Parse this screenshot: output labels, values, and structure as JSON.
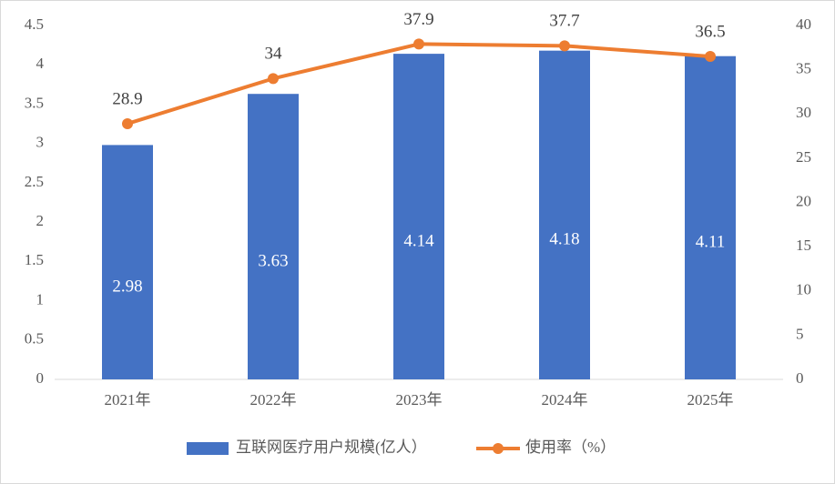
{
  "chart_data": {
    "type": "bar",
    "categories": [
      "2021年",
      "2022年",
      "2023年",
      "2024年",
      "2025年"
    ],
    "series": [
      {
        "name": "互联网医疗用户规模(亿人）",
        "type": "bar",
        "color": "#4472c4",
        "values": [
          2.98,
          3.63,
          4.14,
          4.18,
          4.11
        ]
      },
      {
        "name": "使用率（%）",
        "type": "line",
        "axis": "y2",
        "color": "#ed7d31",
        "values": [
          28.9,
          34,
          37.9,
          37.7,
          36.5
        ]
      }
    ],
    "ylim": [
      0,
      4.5
    ],
    "yticks": [
      0,
      0.5,
      1,
      1.5,
      2,
      2.5,
      3,
      3.5,
      4,
      4.5
    ],
    "y2lim": [
      0,
      40
    ],
    "y2ticks": [
      0,
      5,
      10,
      15,
      20,
      25,
      30,
      35,
      40
    ],
    "grid": false,
    "legend": "bottom"
  }
}
